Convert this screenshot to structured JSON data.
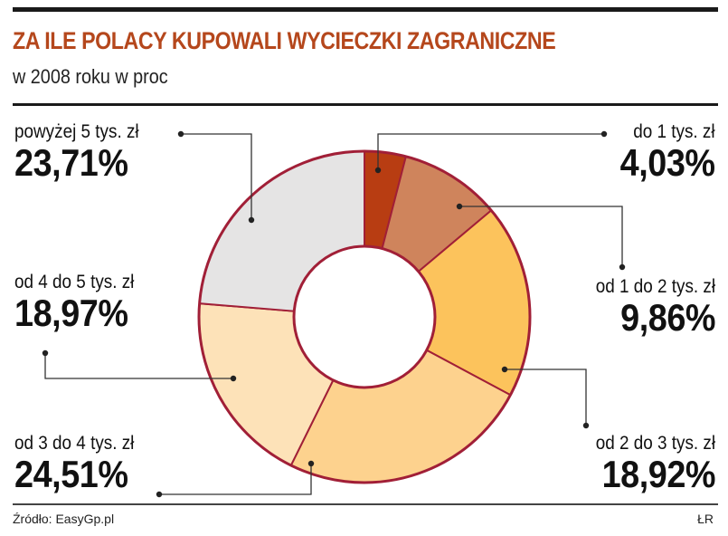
{
  "header": {
    "title": "ZA ILE POLACY KUPOWALI WYCIECZKI ZAGRANICZNE",
    "subtitle": "w 2008 roku w proc"
  },
  "footer": {
    "source": "Źródło: EasyGp.pl",
    "author": "ŁR"
  },
  "chart_data": {
    "type": "pie",
    "donut": true,
    "title": "ZA ILE POLACY KUPOWALI WYCIECZKI ZAGRANICZNE",
    "subtitle": "w 2008 roku w proc",
    "categories": [
      "do 1 tys. zł",
      "od 1 do 2 tys. zł",
      "od 2 do 3 tys. zł",
      "od 3 do 4 tys. zł",
      "od 4 do 5 tys. zł",
      "powyżej 5 tys. zł"
    ],
    "values": [
      4.03,
      9.86,
      18.92,
      24.51,
      18.97,
      23.71
    ],
    "value_labels": [
      "4,03%",
      "9,86%",
      "18,92%",
      "24,51%",
      "18,97%",
      "23,71%"
    ],
    "colors": [
      "#b83d12",
      "#cf845c",
      "#fcc35c",
      "#fdd28e",
      "#fde2b8",
      "#e5e4e4"
    ],
    "outline_color": "#a11f37"
  }
}
